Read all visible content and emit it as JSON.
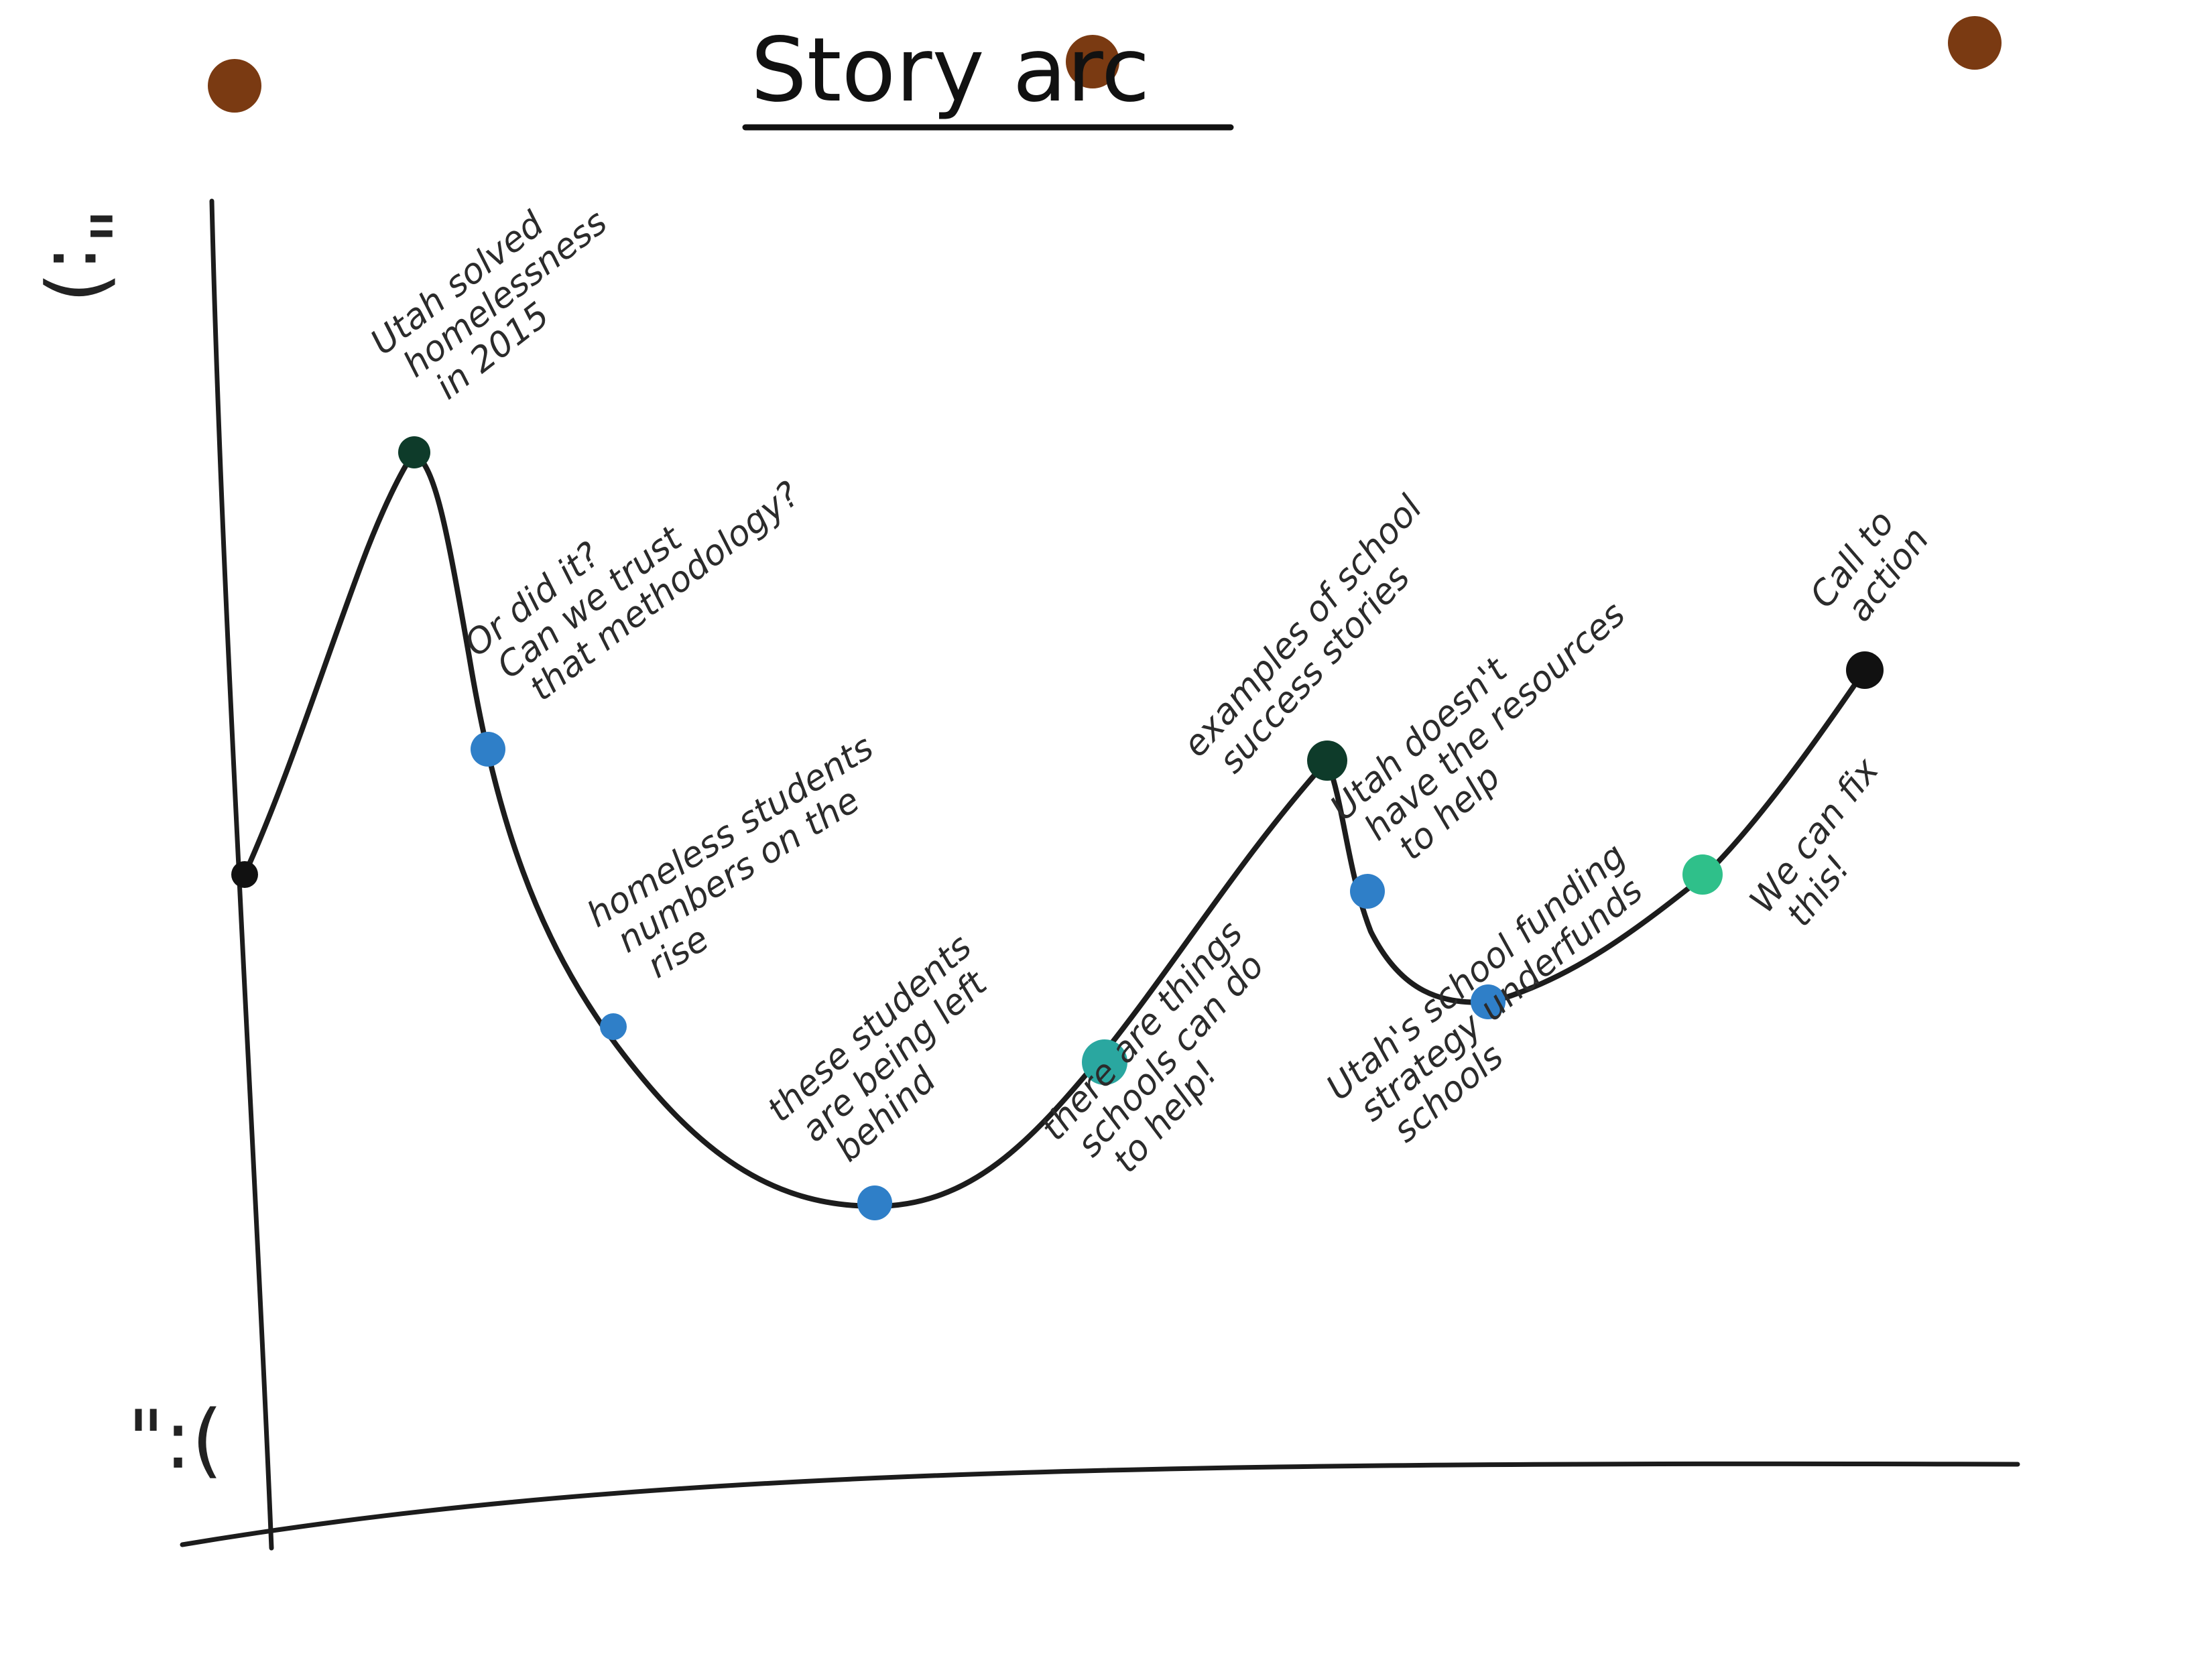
{
  "title": "Story arc",
  "axis_faces": {
    "top": "\":)",
    "bottom": "\":("
  },
  "colors": {
    "ink": "#1c1c1c",
    "pin": "#7a3a12",
    "dot_blue": "#2f7fc8",
    "dot_teal": "#2aa7a0",
    "dot_green": "#2fc08a",
    "dot_dark": "#0e3b2a",
    "dot_black": "#111111"
  },
  "beats": [
    {
      "id": "start",
      "lines": [],
      "dot": "dot_black"
    },
    {
      "id": "peak",
      "lines": [
        "Utah solved",
        "homelessness",
        "in 2015"
      ],
      "dot": "dot_dark"
    },
    {
      "id": "doubt",
      "lines": [
        "Or did it?",
        "Can we trust",
        "that methodology?"
      ],
      "dot": "dot_blue"
    },
    {
      "id": "rise",
      "lines": [
        "homeless students",
        "numbers on the",
        "rise"
      ],
      "dot": "dot_blue"
    },
    {
      "id": "behind",
      "lines": [
        "these students",
        "are being left",
        "behind"
      ],
      "dot": "dot_blue"
    },
    {
      "id": "things",
      "lines": [
        "there are things",
        "schools can do",
        "to help!"
      ],
      "dot": "dot_teal"
    },
    {
      "id": "success",
      "lines": [
        "examples of school",
        "success stories"
      ],
      "dot": "dot_dark"
    },
    {
      "id": "resources",
      "lines": [
        "Utah doesn't",
        "have the resources",
        "to help"
      ],
      "dot": "dot_blue"
    },
    {
      "id": "funding",
      "lines": [
        "Utah's school funding",
        "strategy underfunds",
        "schools"
      ],
      "dot": "dot_blue"
    },
    {
      "id": "fix",
      "lines": [
        "We can fix",
        "this!"
      ],
      "dot": "dot_green"
    },
    {
      "id": "action",
      "lines": [
        "Call to",
        "action"
      ],
      "dot": "dot_black"
    }
  ]
}
